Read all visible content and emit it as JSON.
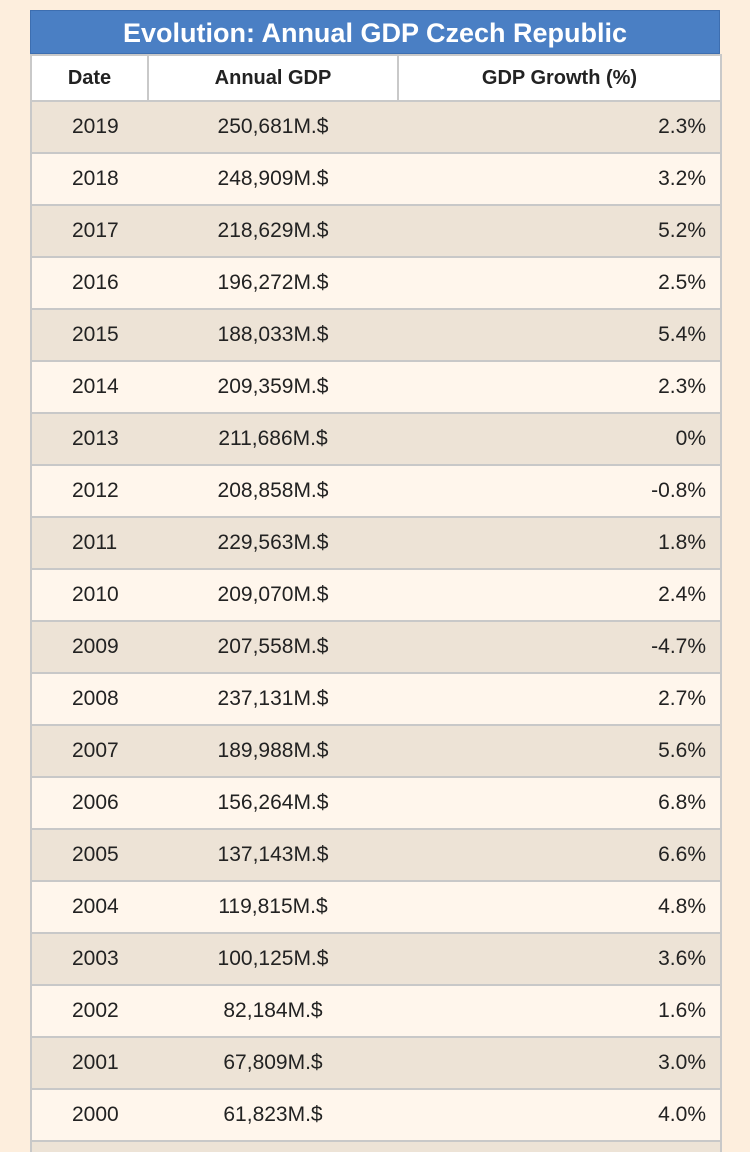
{
  "table": {
    "title": "Evolution: Annual GDP Czech Republic",
    "headers": {
      "date": "Date",
      "gdp": "Annual GDP",
      "growth": "GDP Growth (%)"
    },
    "rows": [
      {
        "date": "2019",
        "gdp": "250,681M.$",
        "growth": "2.3%"
      },
      {
        "date": "2018",
        "gdp": "248,909M.$",
        "growth": "3.2%"
      },
      {
        "date": "2017",
        "gdp": "218,629M.$",
        "growth": "5.2%"
      },
      {
        "date": "2016",
        "gdp": "196,272M.$",
        "growth": "2.5%"
      },
      {
        "date": "2015",
        "gdp": "188,033M.$",
        "growth": "5.4%"
      },
      {
        "date": "2014",
        "gdp": "209,359M.$",
        "growth": "2.3%"
      },
      {
        "date": "2013",
        "gdp": "211,686M.$",
        "growth": "0%"
      },
      {
        "date": "2012",
        "gdp": "208,858M.$",
        "growth": "-0.8%"
      },
      {
        "date": "2011",
        "gdp": "229,563M.$",
        "growth": "1.8%"
      },
      {
        "date": "2010",
        "gdp": "209,070M.$",
        "growth": "2.4%"
      },
      {
        "date": "2009",
        "gdp": "207,558M.$",
        "growth": "-4.7%"
      },
      {
        "date": "2008",
        "gdp": "237,131M.$",
        "growth": "2.7%"
      },
      {
        "date": "2007",
        "gdp": "189,988M.$",
        "growth": "5.6%"
      },
      {
        "date": "2006",
        "gdp": "156,264M.$",
        "growth": "6.8%"
      },
      {
        "date": "2005",
        "gdp": "137,143M.$",
        "growth": "6.6%"
      },
      {
        "date": "2004",
        "gdp": "119,815M.$",
        "growth": "4.8%"
      },
      {
        "date": "2003",
        "gdp": "100,125M.$",
        "growth": "3.6%"
      },
      {
        "date": "2002",
        "gdp": "82,184M.$",
        "growth": "1.6%"
      },
      {
        "date": "2001",
        "gdp": "67,809M.$",
        "growth": "3.0%"
      },
      {
        "date": "2000",
        "gdp": "61,823M.$",
        "growth": "4.0%"
      }
    ]
  },
  "colors": {
    "title_background": "#4a7fc4",
    "page_background": "#fdeedd",
    "row_odd": "#ede3d6",
    "row_even": "#fff6ec"
  }
}
